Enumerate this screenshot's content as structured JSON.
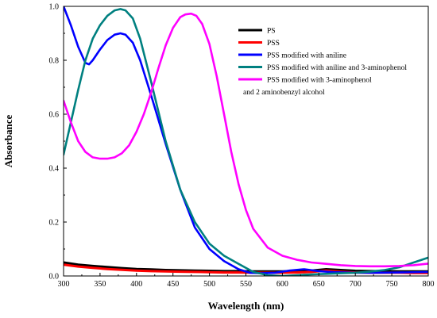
{
  "chart_data": {
    "type": "line",
    "title": "",
    "xlabel": "Wavelength (nm)",
    "ylabel": "Absorbance",
    "xlim": [
      300,
      800
    ],
    "ylim": [
      0,
      1.0
    ],
    "xticks": [
      300,
      350,
      400,
      450,
      500,
      550,
      600,
      650,
      700,
      750,
      800
    ],
    "xtick_labels": [
      "300",
      "350",
      "400",
      "450",
      "500",
      "550",
      "600",
      "650",
      "700",
      "750",
      "800"
    ],
    "yticks": [
      0,
      0.2,
      0.4,
      0.6,
      0.8,
      1.0
    ],
    "ytick_labels": [
      "0.0",
      "0.2",
      "0.4",
      "0.6",
      "0.8",
      "1.0"
    ],
    "grid": false,
    "legend_position": "top-right",
    "series": [
      {
        "name": "PS",
        "color": "#000000",
        "x": [
          300,
          320,
          340,
          360,
          380,
          400,
          420,
          440,
          460,
          480,
          500,
          520,
          540,
          560,
          580,
          600,
          620,
          640,
          660,
          680,
          700,
          720,
          740,
          760,
          780,
          800
        ],
        "y": [
          0.05,
          0.042,
          0.037,
          0.033,
          0.029,
          0.026,
          0.024,
          0.022,
          0.021,
          0.02,
          0.019,
          0.018,
          0.018,
          0.017,
          0.017,
          0.017,
          0.018,
          0.02,
          0.025,
          0.022,
          0.019,
          0.018,
          0.018,
          0.017,
          0.017,
          0.017
        ]
      },
      {
        "name": "PSS",
        "color": "#ff0000",
        "x": [
          300,
          320,
          340,
          360,
          380,
          400,
          420,
          440,
          460,
          480,
          500,
          520,
          540,
          560,
          580,
          600,
          620,
          640,
          660,
          680,
          700,
          720,
          740,
          760,
          780,
          800
        ],
        "y": [
          0.042,
          0.035,
          0.03,
          0.026,
          0.023,
          0.02,
          0.018,
          0.017,
          0.016,
          0.015,
          0.014,
          0.013,
          0.013,
          0.012,
          0.012,
          0.012,
          0.013,
          0.015,
          0.02,
          0.016,
          0.013,
          0.012,
          0.012,
          0.012,
          0.011,
          0.011
        ]
      },
      {
        "name": "PSS modified with aniline",
        "color": "#0000ff",
        "x": [
          300,
          310,
          320,
          330,
          335,
          340,
          350,
          360,
          370,
          378,
          385,
          395,
          405,
          420,
          440,
          460,
          480,
          500,
          520,
          540,
          555,
          570,
          590,
          610,
          630,
          650,
          670,
          700,
          730,
          760,
          800
        ],
        "y": [
          1.0,
          0.93,
          0.85,
          0.79,
          0.785,
          0.8,
          0.84,
          0.875,
          0.895,
          0.9,
          0.895,
          0.865,
          0.8,
          0.67,
          0.49,
          0.32,
          0.18,
          0.1,
          0.055,
          0.025,
          0.012,
          0.01,
          0.012,
          0.02,
          0.025,
          0.018,
          0.014,
          0.012,
          0.012,
          0.013,
          0.015
        ]
      },
      {
        "name": "PSS modified with aniline and 3-aminophenol",
        "color": "#008080",
        "x": [
          300,
          310,
          320,
          330,
          340,
          350,
          360,
          370,
          378,
          385,
          395,
          405,
          420,
          440,
          460,
          480,
          500,
          520,
          540,
          560,
          580,
          600,
          620,
          640,
          660,
          680,
          700,
          720,
          740,
          760,
          780,
          800
        ],
        "y": [
          0.45,
          0.57,
          0.69,
          0.8,
          0.88,
          0.93,
          0.965,
          0.985,
          0.99,
          0.985,
          0.955,
          0.88,
          0.72,
          0.5,
          0.32,
          0.2,
          0.12,
          0.075,
          0.045,
          0.015,
          0.003,
          0.0,
          0.003,
          0.006,
          0.008,
          0.01,
          0.012,
          0.016,
          0.022,
          0.032,
          0.05,
          0.068
        ]
      },
      {
        "name": "PSS modified with  3-aminophenol",
        "color": "#ff00ff",
        "x": [
          300,
          310,
          320,
          330,
          340,
          350,
          360,
          370,
          380,
          390,
          400,
          410,
          420,
          430,
          440,
          450,
          460,
          467,
          475,
          482,
          490,
          500,
          510,
          520,
          530,
          540,
          550,
          560,
          580,
          600,
          620,
          640,
          660,
          680,
          700,
          720,
          740,
          760,
          780,
          800
        ],
        "y": [
          0.65,
          0.57,
          0.5,
          0.46,
          0.44,
          0.435,
          0.435,
          0.44,
          0.455,
          0.485,
          0.535,
          0.6,
          0.68,
          0.77,
          0.855,
          0.92,
          0.96,
          0.97,
          0.973,
          0.965,
          0.935,
          0.86,
          0.74,
          0.6,
          0.46,
          0.34,
          0.245,
          0.175,
          0.105,
          0.075,
          0.06,
          0.05,
          0.045,
          0.04,
          0.037,
          0.036,
          0.036,
          0.037,
          0.04,
          0.046
        ]
      }
    ],
    "legend": {
      "entries": [
        {
          "label": "PS",
          "color": "#000000"
        },
        {
          "label": "PSS",
          "color": "#ff0000"
        },
        {
          "label": "PSS modified with aniline",
          "color": "#0000ff"
        },
        {
          "label": "PSS modified with aniline and 3-aminophenol",
          "color": "#008080"
        },
        {
          "label": "PSS modified with  3-aminophenol",
          "color": "#ff00ff"
        }
      ],
      "continuation": "and 2 aminobenzyl alcohol"
    }
  }
}
